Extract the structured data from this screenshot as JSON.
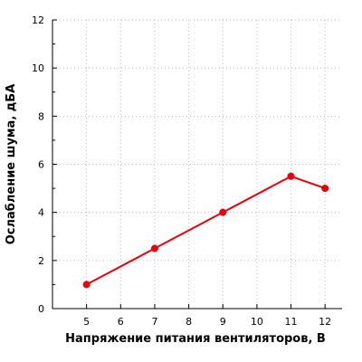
{
  "chart_data": {
    "type": "line",
    "title": "",
    "xlabel": "Напряжение питания вентиляторов, В",
    "ylabel": "Ослабление шума, дБА",
    "xlim": [
      4,
      12.5
    ],
    "ylim": [
      0,
      12
    ],
    "x_ticks": [
      5,
      6,
      7,
      8,
      9,
      10,
      11,
      12
    ],
    "y_ticks": [
      0,
      2,
      4,
      6,
      8,
      10,
      12
    ],
    "grid": true,
    "legend": "none",
    "series": [
      {
        "color": "#e8000b",
        "x": [
          5,
          7,
          9,
          11,
          12
        ],
        "y": [
          1,
          2.5,
          4,
          5.5,
          5
        ]
      }
    ]
  }
}
